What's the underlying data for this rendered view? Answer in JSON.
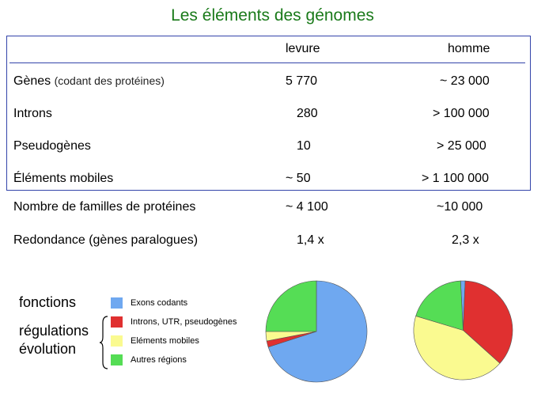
{
  "title": "Les éléments des génomes",
  "headers": {
    "col1": "levure",
    "col2": "homme"
  },
  "rows": [
    {
      "label": "Gènes",
      "note": "(codant des protéines)",
      "levure": "5 770",
      "homme": "~ 23 000"
    },
    {
      "label": "Introns",
      "note": "",
      "levure": "280",
      "homme": "> 100 000"
    },
    {
      "label": "Pseudogènes",
      "note": "",
      "levure": "10",
      "homme": "> 25 000"
    },
    {
      "label": "Éléments mobiles",
      "note": "",
      "levure": "~ 50",
      "homme": "> 1 100 000"
    }
  ],
  "extra_rows": [
    {
      "label": "Nombre de familles de protéines",
      "levure": "~ 4 100",
      "homme": "~10 000"
    },
    {
      "label": "Redondance (gènes paralogues)",
      "levure": "1,4 x",
      "homme": "2,3 x"
    }
  ],
  "side_labels": {
    "fonctions": "fonctions",
    "regulations": "régulations",
    "evolution": "évolution"
  },
  "colors": {
    "title": "#1a7a1a",
    "box": "#3344aa"
  },
  "chart_data": [
    {
      "type": "pie",
      "legend": "left",
      "categories": [
        "Exons codants",
        "Introns, UTR, pseudogènes",
        "Eléments mobiles",
        "Autres régions"
      ],
      "colors": [
        "#6fa8f0",
        "#e03030",
        "#fafa90",
        "#55dd55"
      ],
      "values": [
        70,
        2,
        3,
        25
      ]
    },
    {
      "type": "pie",
      "legend": "left",
      "categories": [
        "Exons codants",
        "Introns, UTR, pseudogènes",
        "Eléments mobiles",
        "Autres régions"
      ],
      "colors": [
        "#6fa8f0",
        "#e03030",
        "#fafa90",
        "#55dd55"
      ],
      "values": [
        1.5,
        36,
        43,
        19.5
      ]
    }
  ]
}
